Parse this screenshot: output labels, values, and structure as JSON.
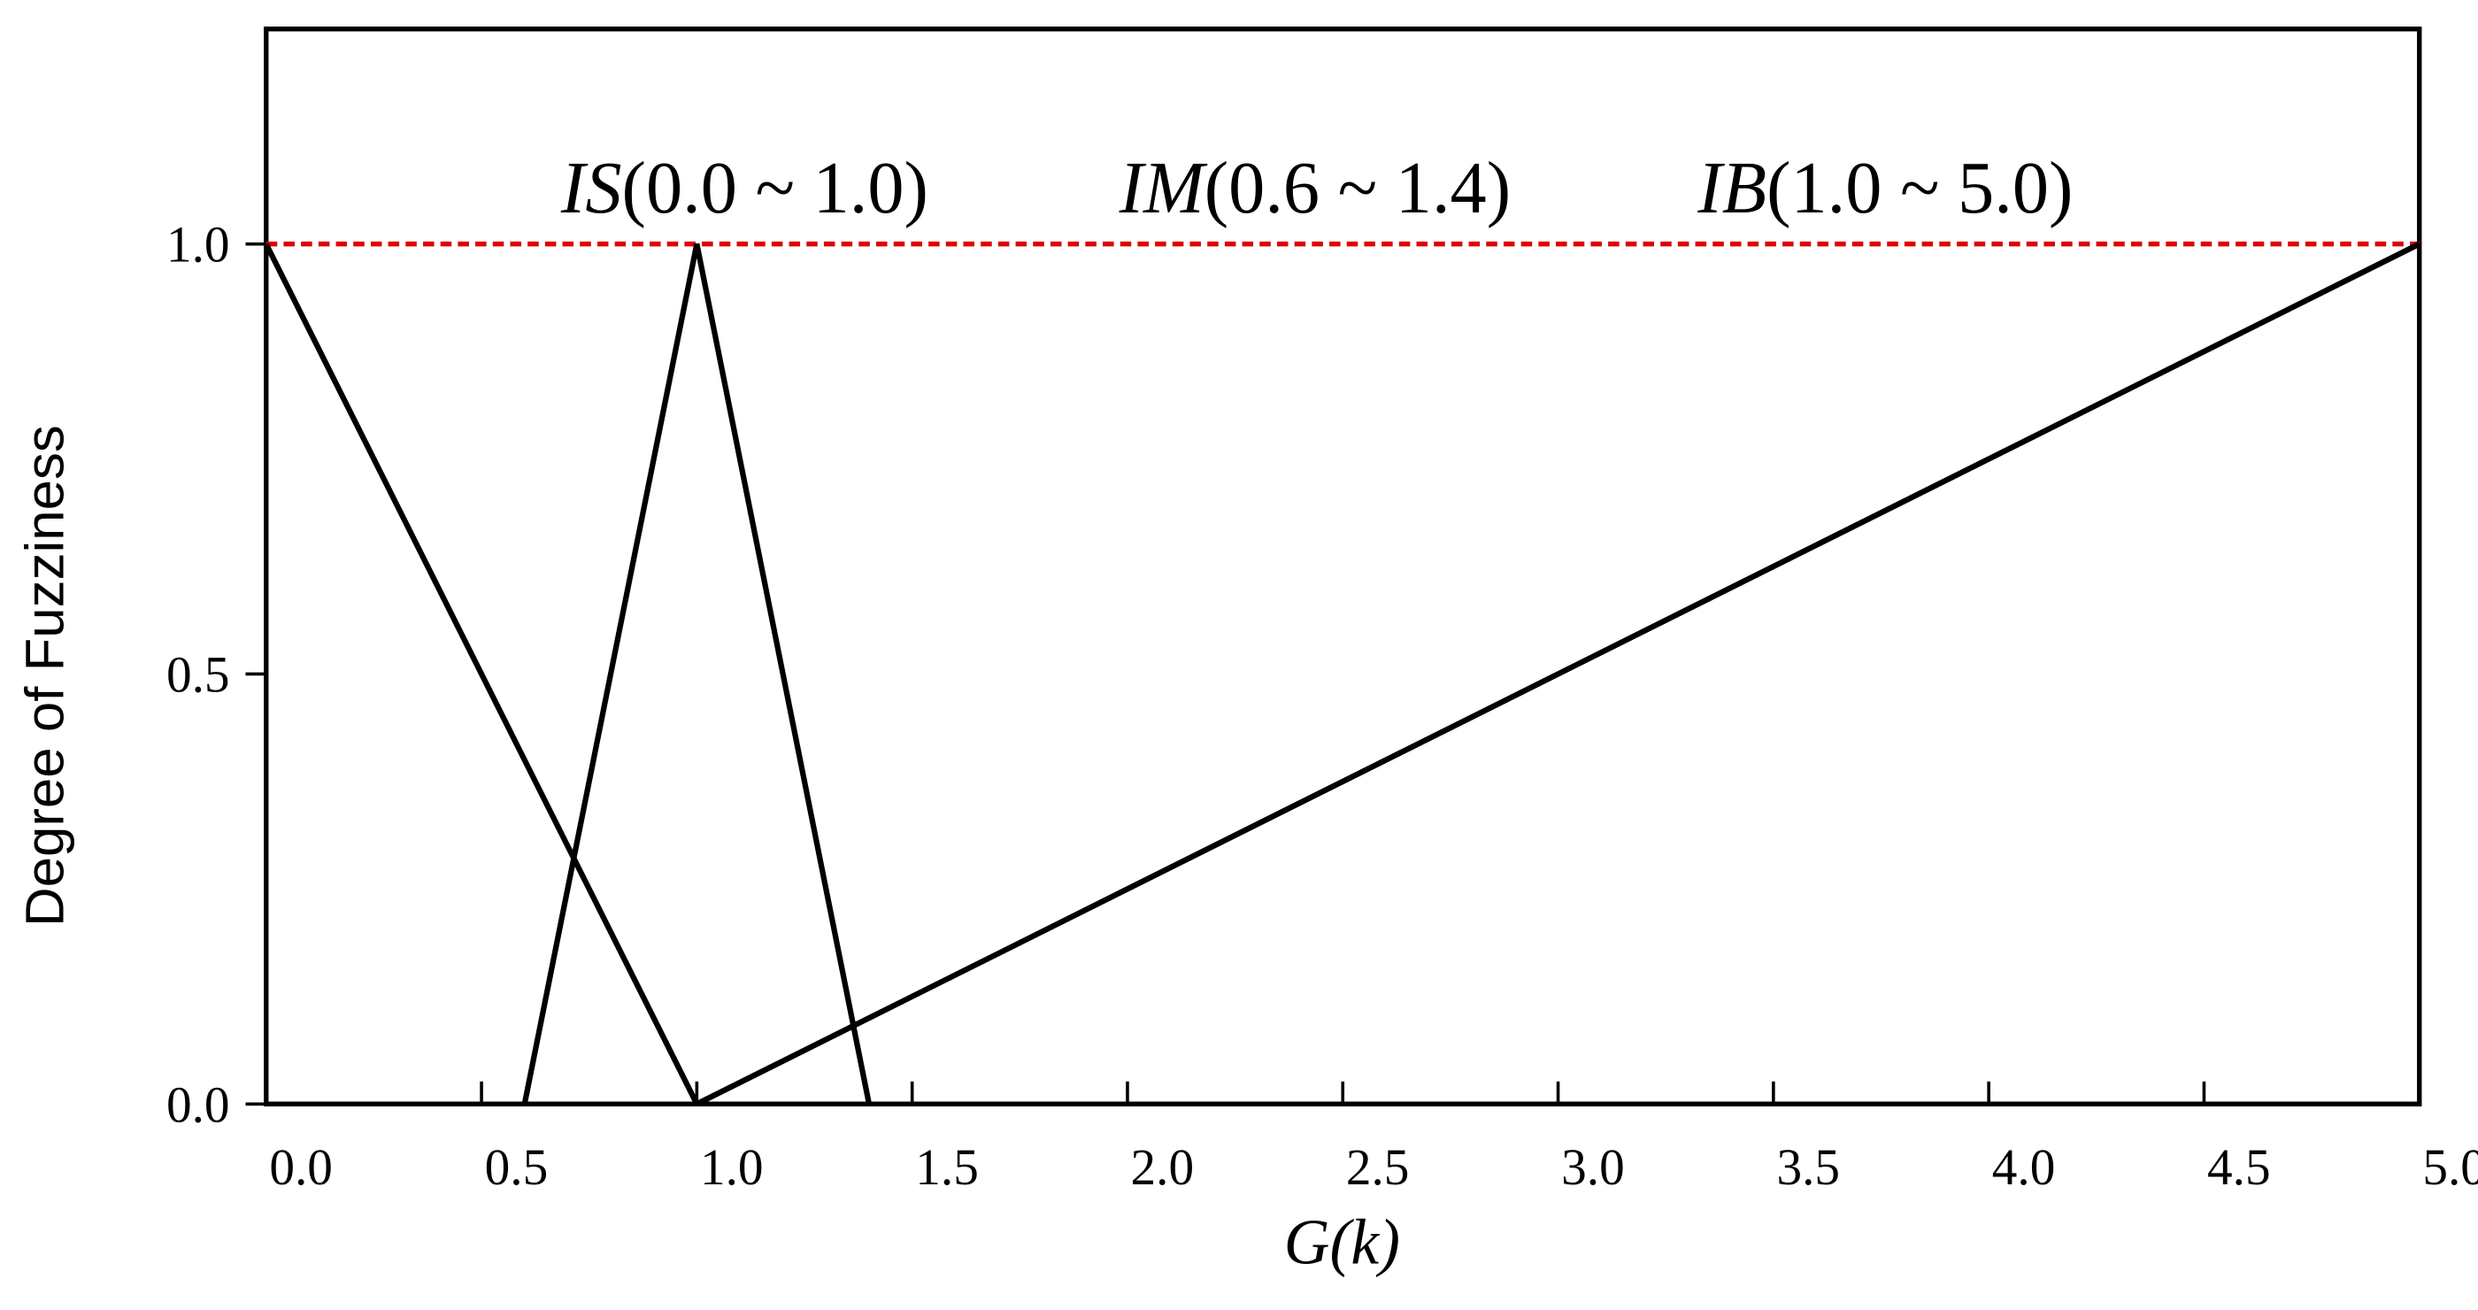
{
  "chart_data": {
    "type": "line",
    "x_label": "G(k)",
    "y_label": "Degree of Fuzziness",
    "xlim": [
      0,
      5
    ],
    "ylim": [
      0,
      1.25
    ],
    "xticks": [
      {
        "value": 0,
        "label": "0.0"
      },
      {
        "value": 0.5,
        "label": "0.5"
      },
      {
        "value": 1,
        "label": "1.0"
      },
      {
        "value": 1.5,
        "label": "1.5"
      },
      {
        "value": 2,
        "label": "2.0"
      },
      {
        "value": 2.5,
        "label": "2.5"
      },
      {
        "value": 3,
        "label": "3.0"
      },
      {
        "value": 3.5,
        "label": "3.5"
      },
      {
        "value": 4,
        "label": "4.0"
      },
      {
        "value": 4.5,
        "label": "4.5"
      },
      {
        "value": 5,
        "label": "5.0"
      }
    ],
    "yticks": [
      {
        "value": 0,
        "label": "0.0"
      },
      {
        "value": 0.5,
        "label": "0.5"
      },
      {
        "value": 1,
        "label": "1.0"
      }
    ],
    "reference_line": {
      "value": 1,
      "color": "#e00000"
    },
    "series": [
      {
        "name": "IS",
        "label": "(0.0 ~ 1.0)",
        "color": "#000000",
        "x": [
          0,
          1
        ],
        "values": [
          1,
          0
        ]
      },
      {
        "name": "IM",
        "label": "(0.6 ~ 1.4)",
        "color": "#000000",
        "x": [
          0.6,
          1,
          1.4
        ],
        "values": [
          0,
          1,
          0
        ]
      },
      {
        "name": "IB",
        "label": "(1.0 ~ 5.0)",
        "color": "#000000",
        "x": [
          1,
          5
        ],
        "values": [
          0,
          1
        ]
      }
    ]
  }
}
